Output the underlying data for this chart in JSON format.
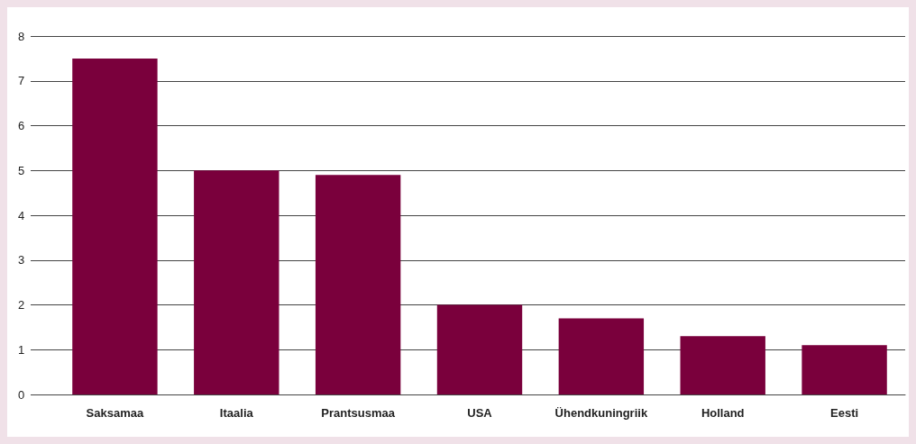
{
  "chart_data": {
    "type": "bar",
    "categories": [
      "Saksamaa",
      "Itaalia",
      "Prantsusmaa",
      "USA",
      "Ühendkuningriik",
      "Holland",
      "Eesti"
    ],
    "values": [
      7.5,
      5.0,
      4.9,
      2.0,
      1.7,
      1.3,
      1.1
    ],
    "color": "#7a003c",
    "ylim": [
      0,
      8
    ],
    "yticks": [
      0,
      1,
      2,
      3,
      4,
      5,
      6,
      7,
      8
    ],
    "grid": "y"
  }
}
